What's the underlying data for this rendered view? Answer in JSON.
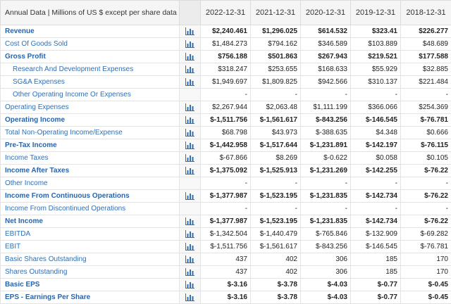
{
  "header": {
    "label": "Annual Data | Millions of US $ except per share data",
    "years": [
      "2022-12-31",
      "2021-12-31",
      "2020-12-31",
      "2019-12-31",
      "2018-12-31"
    ]
  },
  "rows": [
    {
      "label": "Revenue",
      "bold": true,
      "indent": false,
      "icon": true,
      "values": [
        "$2,240.461",
        "$1,296.025",
        "$614.532",
        "$323.41",
        "$226.277"
      ]
    },
    {
      "label": "Cost Of Goods Sold",
      "bold": false,
      "indent": false,
      "icon": true,
      "values": [
        "$1,484.273",
        "$794.162",
        "$346.589",
        "$103.889",
        "$48.689"
      ]
    },
    {
      "label": "Gross Profit",
      "bold": true,
      "indent": false,
      "icon": true,
      "values": [
        "$756.188",
        "$501.863",
        "$267.943",
        "$219.521",
        "$177.588"
      ]
    },
    {
      "label": "Research And Development Expenses",
      "bold": false,
      "indent": true,
      "icon": true,
      "values": [
        "$318.247",
        "$253.655",
        "$168.633",
        "$55.929",
        "$32.885"
      ]
    },
    {
      "label": "SG&A Expenses",
      "bold": false,
      "indent": true,
      "icon": true,
      "values": [
        "$1,949.697",
        "$1,809.825",
        "$942.566",
        "$310.137",
        "$221.484"
      ]
    },
    {
      "label": "Other Operating Income Or Expenses",
      "bold": false,
      "indent": true,
      "icon": false,
      "values": [
        "-",
        "-",
        "-",
        "-",
        "-"
      ]
    },
    {
      "label": "Operating Expenses",
      "bold": false,
      "indent": false,
      "icon": true,
      "values": [
        "$2,267.944",
        "$2,063.48",
        "$1,111.199",
        "$366.066",
        "$254.369"
      ]
    },
    {
      "label": "Operating Income",
      "bold": true,
      "indent": false,
      "icon": true,
      "values": [
        "$-1,511.756",
        "$-1,561.617",
        "$-843.256",
        "$-146.545",
        "$-76.781"
      ]
    },
    {
      "label": "Total Non-Operating Income/Expense",
      "bold": false,
      "indent": false,
      "icon": true,
      "values": [
        "$68.798",
        "$43.973",
        "$-388.635",
        "$4.348",
        "$0.666"
      ]
    },
    {
      "label": "Pre-Tax Income",
      "bold": true,
      "indent": false,
      "icon": true,
      "values": [
        "$-1,442.958",
        "$-1,517.644",
        "$-1,231.891",
        "$-142.197",
        "$-76.115"
      ]
    },
    {
      "label": "Income Taxes",
      "bold": false,
      "indent": false,
      "icon": true,
      "values": [
        "$-67.866",
        "$8.269",
        "$-0.622",
        "$0.058",
        "$0.105"
      ]
    },
    {
      "label": "Income After Taxes",
      "bold": true,
      "indent": false,
      "icon": true,
      "values": [
        "$-1,375.092",
        "$-1,525.913",
        "$-1,231.269",
        "$-142.255",
        "$-76.22"
      ]
    },
    {
      "label": "Other Income",
      "bold": false,
      "indent": false,
      "icon": false,
      "values": [
        "-",
        "-",
        "-",
        "-",
        "-"
      ]
    },
    {
      "label": "Income From Continuous Operations",
      "bold": true,
      "indent": false,
      "icon": true,
      "values": [
        "$-1,377.987",
        "$-1,523.195",
        "$-1,231.835",
        "$-142.734",
        "$-76.22"
      ]
    },
    {
      "label": "Income From Discontinued Operations",
      "bold": false,
      "indent": false,
      "icon": false,
      "values": [
        "-",
        "-",
        "-",
        "-",
        "-"
      ]
    },
    {
      "label": "Net Income",
      "bold": true,
      "indent": false,
      "icon": true,
      "values": [
        "$-1,377.987",
        "$-1,523.195",
        "$-1,231.835",
        "$-142.734",
        "$-76.22"
      ]
    },
    {
      "label": "EBITDA",
      "bold": false,
      "indent": false,
      "icon": true,
      "values": [
        "$-1,342.504",
        "$-1,440.479",
        "$-765.846",
        "$-132.909",
        "$-69.282"
      ]
    },
    {
      "label": "EBIT",
      "bold": false,
      "indent": false,
      "icon": true,
      "values": [
        "$-1,511.756",
        "$-1,561.617",
        "$-843.256",
        "$-146.545",
        "$-76.781"
      ]
    },
    {
      "label": "Basic Shares Outstanding",
      "bold": false,
      "indent": false,
      "icon": true,
      "values": [
        "437",
        "402",
        "306",
        "185",
        "170"
      ]
    },
    {
      "label": "Shares Outstanding",
      "bold": false,
      "indent": false,
      "icon": true,
      "values": [
        "437",
        "402",
        "306",
        "185",
        "170"
      ]
    },
    {
      "label": "Basic EPS",
      "bold": true,
      "indent": false,
      "icon": true,
      "values": [
        "$-3.16",
        "$-3.78",
        "$-4.03",
        "$-0.77",
        "$-0.45"
      ]
    },
    {
      "label": "EPS - Earnings Per Share",
      "bold": true,
      "indent": false,
      "icon": true,
      "values": [
        "$-3.16",
        "$-3.78",
        "$-4.03",
        "$-0.77",
        "$-0.45"
      ]
    }
  ],
  "icon_name": "bar-chart-icon",
  "colors": {
    "label_link": "#2f6fb5",
    "icon_blue": "#2f6fb5"
  }
}
